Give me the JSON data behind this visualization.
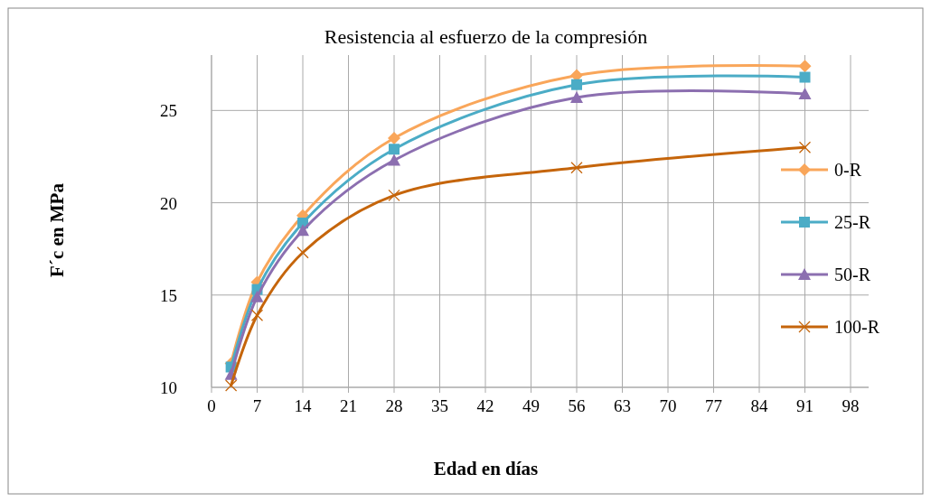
{
  "chart_data": {
    "type": "line",
    "title": "Resistencia al esfuerzo de la compresión",
    "xlabel": "Edad en días",
    "ylabel": "F´c en MPa",
    "x": [
      3,
      7,
      14,
      28,
      56,
      91
    ],
    "series": [
      {
        "name": "0-R",
        "color": "#f9a65a",
        "marker": "diamond",
        "values": [
          11.3,
          15.7,
          19.3,
          23.5,
          26.9,
          27.4
        ]
      },
      {
        "name": "25-R",
        "color": "#4bacc6",
        "marker": "square",
        "values": [
          11.1,
          15.3,
          18.9,
          22.9,
          26.4,
          26.8
        ]
      },
      {
        "name": "50-R",
        "color": "#8c6fb0",
        "marker": "triangle",
        "values": [
          10.7,
          14.9,
          18.5,
          22.3,
          25.7,
          25.9
        ]
      },
      {
        "name": "100-R",
        "color": "#c5650b",
        "marker": "cross",
        "values": [
          10.1,
          13.9,
          17.3,
          20.4,
          21.9,
          23.0
        ]
      }
    ],
    "xlim": [
      0,
      98
    ],
    "xticks": [
      0,
      7,
      14,
      21,
      28,
      35,
      42,
      49,
      56,
      63,
      70,
      77,
      84,
      91,
      98
    ],
    "ylim": [
      10,
      28
    ],
    "yticks": [
      10,
      15,
      20,
      25
    ],
    "grid": true,
    "legend": "right"
  }
}
